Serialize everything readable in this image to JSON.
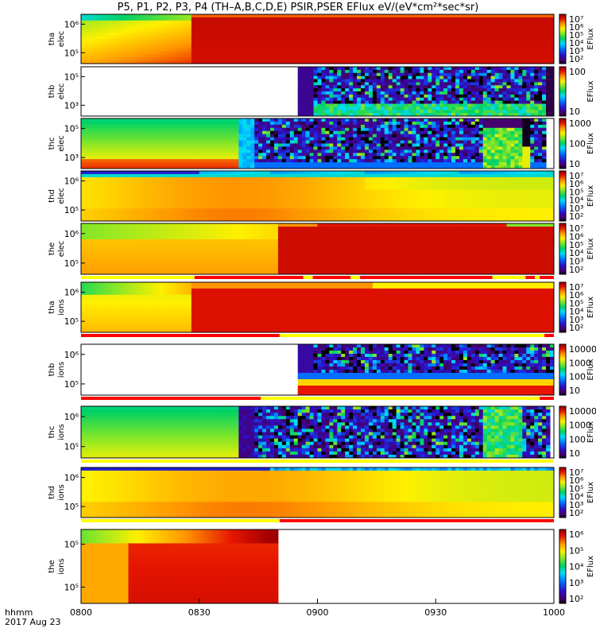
{
  "title": "P5, P1, P2, P3, P4 (TH–A,B,C,D,E) PSIR,PSER EFlux eV/(eV*cm²*sec*sr)",
  "footer": {
    "line1": "hhmm",
    "line2": "2017 Aug 23"
  },
  "chart_data": {
    "type": "heatmap",
    "x_ticks": [
      "0800",
      "0830",
      "0900",
      "0930",
      "1000"
    ],
    "x_range_minutes": [
      0,
      120
    ],
    "panels": [
      {
        "probe": "tha",
        "species": "elec",
        "yticks": [
          "10⁶",
          "10⁵"
        ],
        "cbar_label": "EFlux",
        "cbar_ticks": [
          "10⁷",
          "10⁶",
          "10⁵",
          "10⁴",
          "10³",
          "10²"
        ],
        "pattern": "a_elec",
        "bar": null
      },
      {
        "probe": "thb",
        "species": "elec",
        "yticks": [
          "10⁵",
          "10³"
        ],
        "cbar_label": "EFlux",
        "cbar_ticks": [
          "100",
          "10"
        ],
        "pattern": "b_elec",
        "bar": null
      },
      {
        "probe": "thc",
        "species": "elec",
        "yticks": [
          "10⁵",
          "10³"
        ],
        "cbar_label": "EFlux",
        "cbar_ticks": [
          "1000",
          "100",
          "10"
        ],
        "pattern": "c_elec",
        "bar": null
      },
      {
        "probe": "thd",
        "species": "elec",
        "yticks": [
          "10⁶",
          "10⁵"
        ],
        "cbar_label": "EFlux",
        "cbar_ticks": [
          "10⁷",
          "10⁶",
          "10⁵",
          "10⁴",
          "10³",
          "10²"
        ],
        "pattern": "d_elec",
        "bar": null
      },
      {
        "probe": "the",
        "species": "elec",
        "yticks": [
          "10⁶",
          "10⁵"
        ],
        "cbar_label": "EFlux",
        "cbar_ticks": [
          "10⁷",
          "10⁶",
          "10⁵",
          "10⁴",
          "10³",
          "10²"
        ],
        "pattern": "e_elec",
        "bar": "e_elec"
      },
      {
        "probe": "tha",
        "species": "ions",
        "yticks": [
          "10⁶",
          "10⁵"
        ],
        "cbar_label": "EFlux",
        "cbar_ticks": [
          "10⁷",
          "10⁶",
          "10⁵",
          "10⁴",
          "10³",
          "10²"
        ],
        "pattern": "a_ions",
        "bar": "a_ions"
      },
      {
        "probe": "thb",
        "species": "ions",
        "yticks": [
          "10⁶",
          "10⁵"
        ],
        "cbar_label": "EFlux",
        "cbar_ticks": [
          "10000",
          "1000",
          "100",
          "10"
        ],
        "pattern": "b_ions",
        "bar": "b_ions"
      },
      {
        "probe": "thc",
        "species": "ions",
        "yticks": [
          "10⁶",
          "10⁵"
        ],
        "cbar_label": "EFlux",
        "cbar_ticks": [
          "10000",
          "1000",
          "100",
          "10"
        ],
        "pattern": "c_ions",
        "bar": "c_ions"
      },
      {
        "probe": "thd",
        "species": "ions",
        "yticks": [
          "10⁶",
          "10⁵"
        ],
        "cbar_label": "EFlux",
        "cbar_ticks": [
          "10⁷",
          "10⁶",
          "10⁵",
          "10⁴",
          "10³",
          "10²"
        ],
        "pattern": "d_ions",
        "bar": "d_ions"
      },
      {
        "probe": "the",
        "species": "ions",
        "yticks": [
          "10⁵",
          "10⁵"
        ],
        "cbar_label": "EFlux",
        "cbar_ticks": [
          "10⁶",
          "10⁵",
          "10⁴",
          "10³",
          "10²"
        ],
        "pattern": "e_ions",
        "bar": null
      }
    ]
  }
}
